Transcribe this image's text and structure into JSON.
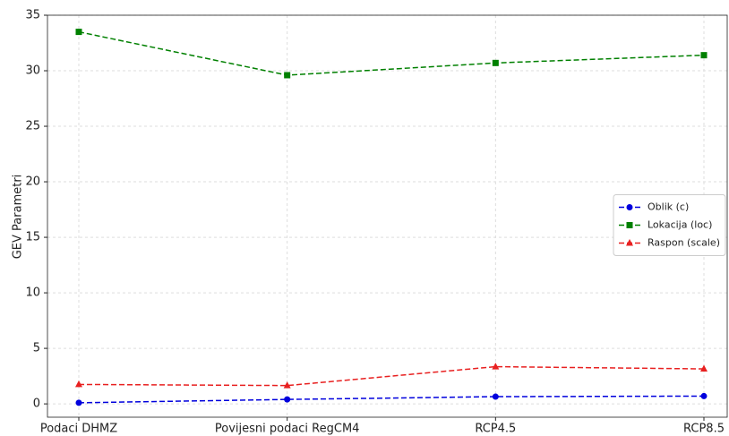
{
  "chart_data": {
    "type": "line",
    "y_label": "GEV Parametri",
    "categories": [
      "Podaci DHMZ",
      "Povijesni podaci RegCM4",
      "RCP4.5",
      "RCP8.5"
    ],
    "series": [
      {
        "name": "Oblik (c)",
        "color": "#0000dd",
        "marker": "circle",
        "values": [
          0.1,
          0.4,
          0.65,
          0.7
        ]
      },
      {
        "name": "Lokacija (loc)",
        "color": "#008000",
        "marker": "square",
        "values": [
          33.5,
          29.6,
          30.7,
          31.4
        ]
      },
      {
        "name": "Raspon (scale)",
        "color": "#e82020",
        "marker": "triangle",
        "values": [
          1.75,
          1.65,
          3.35,
          3.15
        ]
      }
    ],
    "ylim": [
      -1.2,
      35
    ],
    "yticks": [
      0,
      5,
      10,
      15,
      20,
      25,
      30,
      35
    ],
    "grid": true,
    "line_style": "dashed",
    "legend": "right"
  }
}
